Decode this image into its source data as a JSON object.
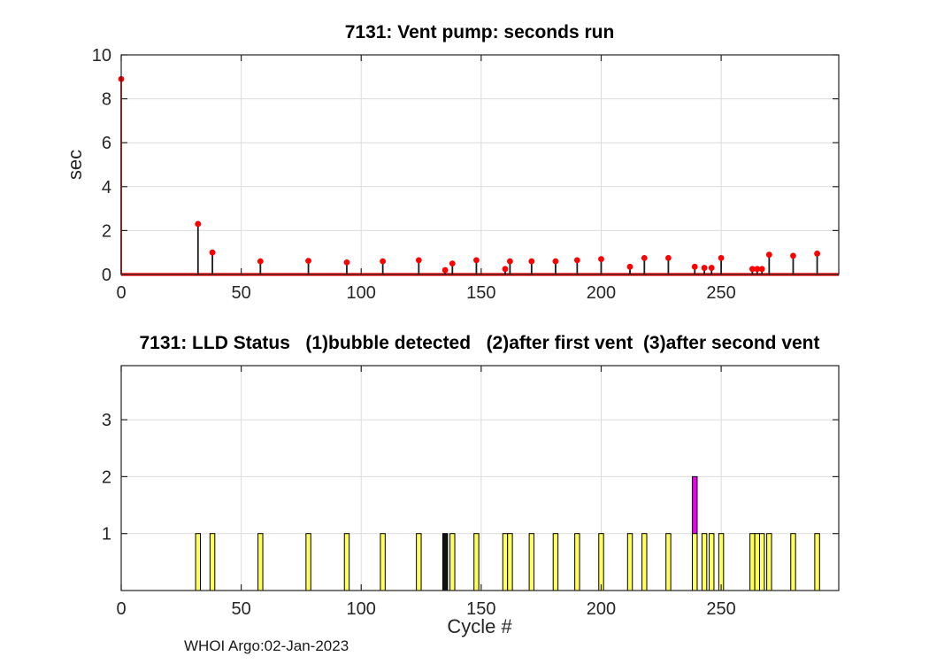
{
  "footer": "WHOI Argo:02-Jan-2023",
  "axis": {
    "tick_color": "#262626",
    "grid_color": "#dcdcdc",
    "box_color": "#222222",
    "label_color": "#262626"
  },
  "chart_data": [
    {
      "type": "stem",
      "title": "7131: Vent pump: seconds run",
      "ylabel": "sec",
      "xlim": [
        0,
        299
      ],
      "ylim": [
        0,
        10
      ],
      "xticks": [
        0,
        50,
        100,
        150,
        200,
        250
      ],
      "yticks": [
        0,
        2,
        4,
        6,
        8,
        10
      ],
      "grid": true,
      "legend": null,
      "stem_line_color": "#1a1a1a",
      "first_stem_color": "#ff0000",
      "marker_color": "#ff0000",
      "baseline_color": "#ff1a1a",
      "points": [
        [
          0,
          8.9
        ],
        [
          32,
          2.3
        ],
        [
          38,
          1.0
        ],
        [
          58,
          0.6
        ],
        [
          78,
          0.62
        ],
        [
          94,
          0.55
        ],
        [
          109,
          0.6
        ],
        [
          124,
          0.65
        ],
        [
          135,
          0.2
        ],
        [
          138,
          0.5
        ],
        [
          148,
          0.65
        ],
        [
          160,
          0.25
        ],
        [
          162,
          0.6
        ],
        [
          171,
          0.6
        ],
        [
          181,
          0.6
        ],
        [
          190,
          0.65
        ],
        [
          200,
          0.7
        ],
        [
          212,
          0.35
        ],
        [
          218,
          0.75
        ],
        [
          228,
          0.75
        ],
        [
          239,
          0.35
        ],
        [
          243,
          0.3
        ],
        [
          246,
          0.3
        ],
        [
          250,
          0.75
        ],
        [
          263,
          0.25
        ],
        [
          265,
          0.25
        ],
        [
          267,
          0.25
        ],
        [
          270,
          0.9
        ],
        [
          280,
          0.85
        ],
        [
          290,
          0.95
        ]
      ]
    },
    {
      "type": "bar",
      "title": "7131: LLD Status   (1)bubble detected   (2)after first vent  (3)after second vent",
      "xlabel": "Cycle #",
      "xlim": [
        0,
        299
      ],
      "ylim": [
        0,
        3.95
      ],
      "xticks": [
        0,
        50,
        100,
        150,
        200,
        250
      ],
      "yticks": [
        1,
        2,
        3
      ],
      "grid": true,
      "bar_width_cycles": 2,
      "colors": {
        "yellow": "#ffff5c",
        "black": "#111111",
        "magenta": "#ee00ee"
      },
      "bars": [
        {
          "x": 32,
          "h": 1,
          "color": "yellow"
        },
        {
          "x": 38,
          "h": 1,
          "color": "yellow"
        },
        {
          "x": 58,
          "h": 1,
          "color": "yellow"
        },
        {
          "x": 78,
          "h": 1,
          "color": "yellow"
        },
        {
          "x": 94,
          "h": 1,
          "color": "yellow"
        },
        {
          "x": 109,
          "h": 1,
          "color": "yellow"
        },
        {
          "x": 124,
          "h": 1,
          "color": "yellow"
        },
        {
          "x": 135,
          "h": 1,
          "color": "black"
        },
        {
          "x": 138,
          "h": 1,
          "color": "yellow"
        },
        {
          "x": 148,
          "h": 1,
          "color": "yellow"
        },
        {
          "x": 160,
          "h": 1,
          "color": "yellow"
        },
        {
          "x": 162,
          "h": 1,
          "color": "yellow"
        },
        {
          "x": 171,
          "h": 1,
          "color": "yellow"
        },
        {
          "x": 181,
          "h": 1,
          "color": "yellow"
        },
        {
          "x": 190,
          "h": 1,
          "color": "yellow"
        },
        {
          "x": 200,
          "h": 1,
          "color": "yellow"
        },
        {
          "x": 212,
          "h": 1,
          "color": "yellow"
        },
        {
          "x": 218,
          "h": 1,
          "color": "yellow"
        },
        {
          "x": 228,
          "h": 1,
          "color": "yellow"
        },
        {
          "x": 239,
          "h": 2,
          "color": "magenta"
        },
        {
          "x": 239,
          "h": 1,
          "color": "yellow"
        },
        {
          "x": 243,
          "h": 1,
          "color": "yellow"
        },
        {
          "x": 246,
          "h": 1,
          "color": "yellow"
        },
        {
          "x": 250,
          "h": 1,
          "color": "yellow"
        },
        {
          "x": 263,
          "h": 1,
          "color": "yellow"
        },
        {
          "x": 265,
          "h": 1,
          "color": "yellow"
        },
        {
          "x": 267,
          "h": 1,
          "color": "yellow"
        },
        {
          "x": 270,
          "h": 1,
          "color": "yellow"
        },
        {
          "x": 280,
          "h": 1,
          "color": "yellow"
        },
        {
          "x": 290,
          "h": 1,
          "color": "yellow"
        }
      ]
    }
  ]
}
